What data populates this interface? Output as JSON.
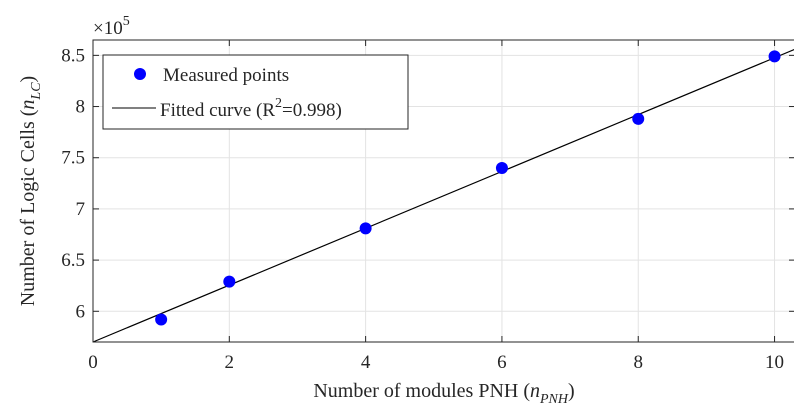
{
  "chart_data": {
    "type": "scatter",
    "xlabel_main": "Number of modules PNH (",
    "xlabel_var": "n",
    "xlabel_sub": "PNH",
    "xlabel_close": ")",
    "ylabel_main": "Number of Logic Cells (",
    "ylabel_var": "n",
    "ylabel_sub": "LC",
    "ylabel_close": ")",
    "y_multiplier_base": "×10",
    "y_multiplier_exp": "5",
    "xlim": [
      0,
      10.3
    ],
    "ylim": [
      5.7,
      8.65
    ],
    "xticks": [
      0,
      2,
      4,
      6,
      8,
      10
    ],
    "xtick_labels": [
      "0",
      "2",
      "4",
      "6",
      "8",
      "10"
    ],
    "yticks": [
      6,
      6.5,
      7,
      7.5,
      8,
      8.5
    ],
    "ytick_labels": [
      "6",
      "6.5",
      "7",
      "7.5",
      "8",
      "8.5"
    ],
    "grid": true,
    "legend_position": "top-left",
    "series": [
      {
        "name": "Measured points",
        "kind": "scatter",
        "color": "#0000ff",
        "x": [
          1,
          2,
          4,
          6,
          8,
          10
        ],
        "y": [
          5.92,
          6.29,
          6.81,
          7.4,
          7.88,
          8.49
        ]
      },
      {
        "name": "Fitted curve (R",
        "name_sup": "2",
        "name_tail": "=0.998)",
        "kind": "line",
        "color": "#000000",
        "x": [
          0,
          10.3
        ],
        "y": [
          5.7,
          8.56
        ]
      }
    ]
  }
}
